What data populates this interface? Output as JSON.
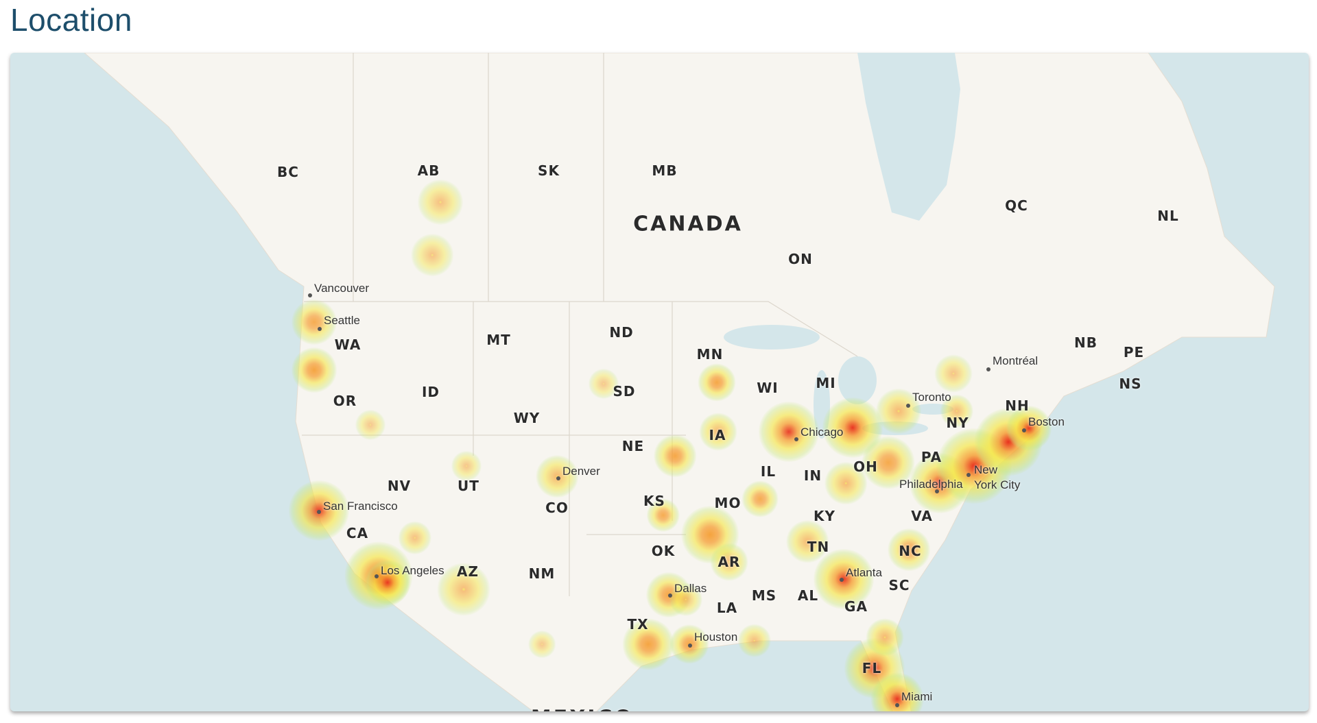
{
  "title": "Location",
  "map": {
    "type": "heatmap",
    "water_color": "#d4e6ea",
    "land_color": "#f7f5f0",
    "heat_colors": [
      "#c8e87a",
      "#f5e640",
      "#f59a2a",
      "#e8321e"
    ],
    "region_labels": [
      "BC",
      "AB",
      "SK",
      "MB",
      "QC",
      "NL",
      "ON",
      "NB",
      "PE",
      "NS",
      "WA",
      "OR",
      "ID",
      "MT",
      "ND",
      "MN",
      "SD",
      "WY",
      "WI",
      "MI",
      "IA",
      "NE",
      "NV",
      "UT",
      "CO",
      "KS",
      "MO",
      "IL",
      "IN",
      "OH",
      "PA",
      "NY",
      "NH",
      "KY",
      "VA",
      "TN",
      "NC",
      "SC",
      "GA",
      "AL",
      "MS",
      "LA",
      "AR",
      "OK",
      "TX",
      "NM",
      "AZ",
      "CA",
      "FL"
    ],
    "country_labels": [
      "CANADA",
      "MEXICO"
    ],
    "cities": [
      "Vancouver",
      "Seattle",
      "San Francisco",
      "Los Angeles",
      "Denver",
      "Dallas",
      "Houston",
      "Chicago",
      "Atlanta",
      "Miami",
      "Philadelphia",
      "New York City",
      "Boston",
      "Toronto",
      "Montréal"
    ]
  }
}
